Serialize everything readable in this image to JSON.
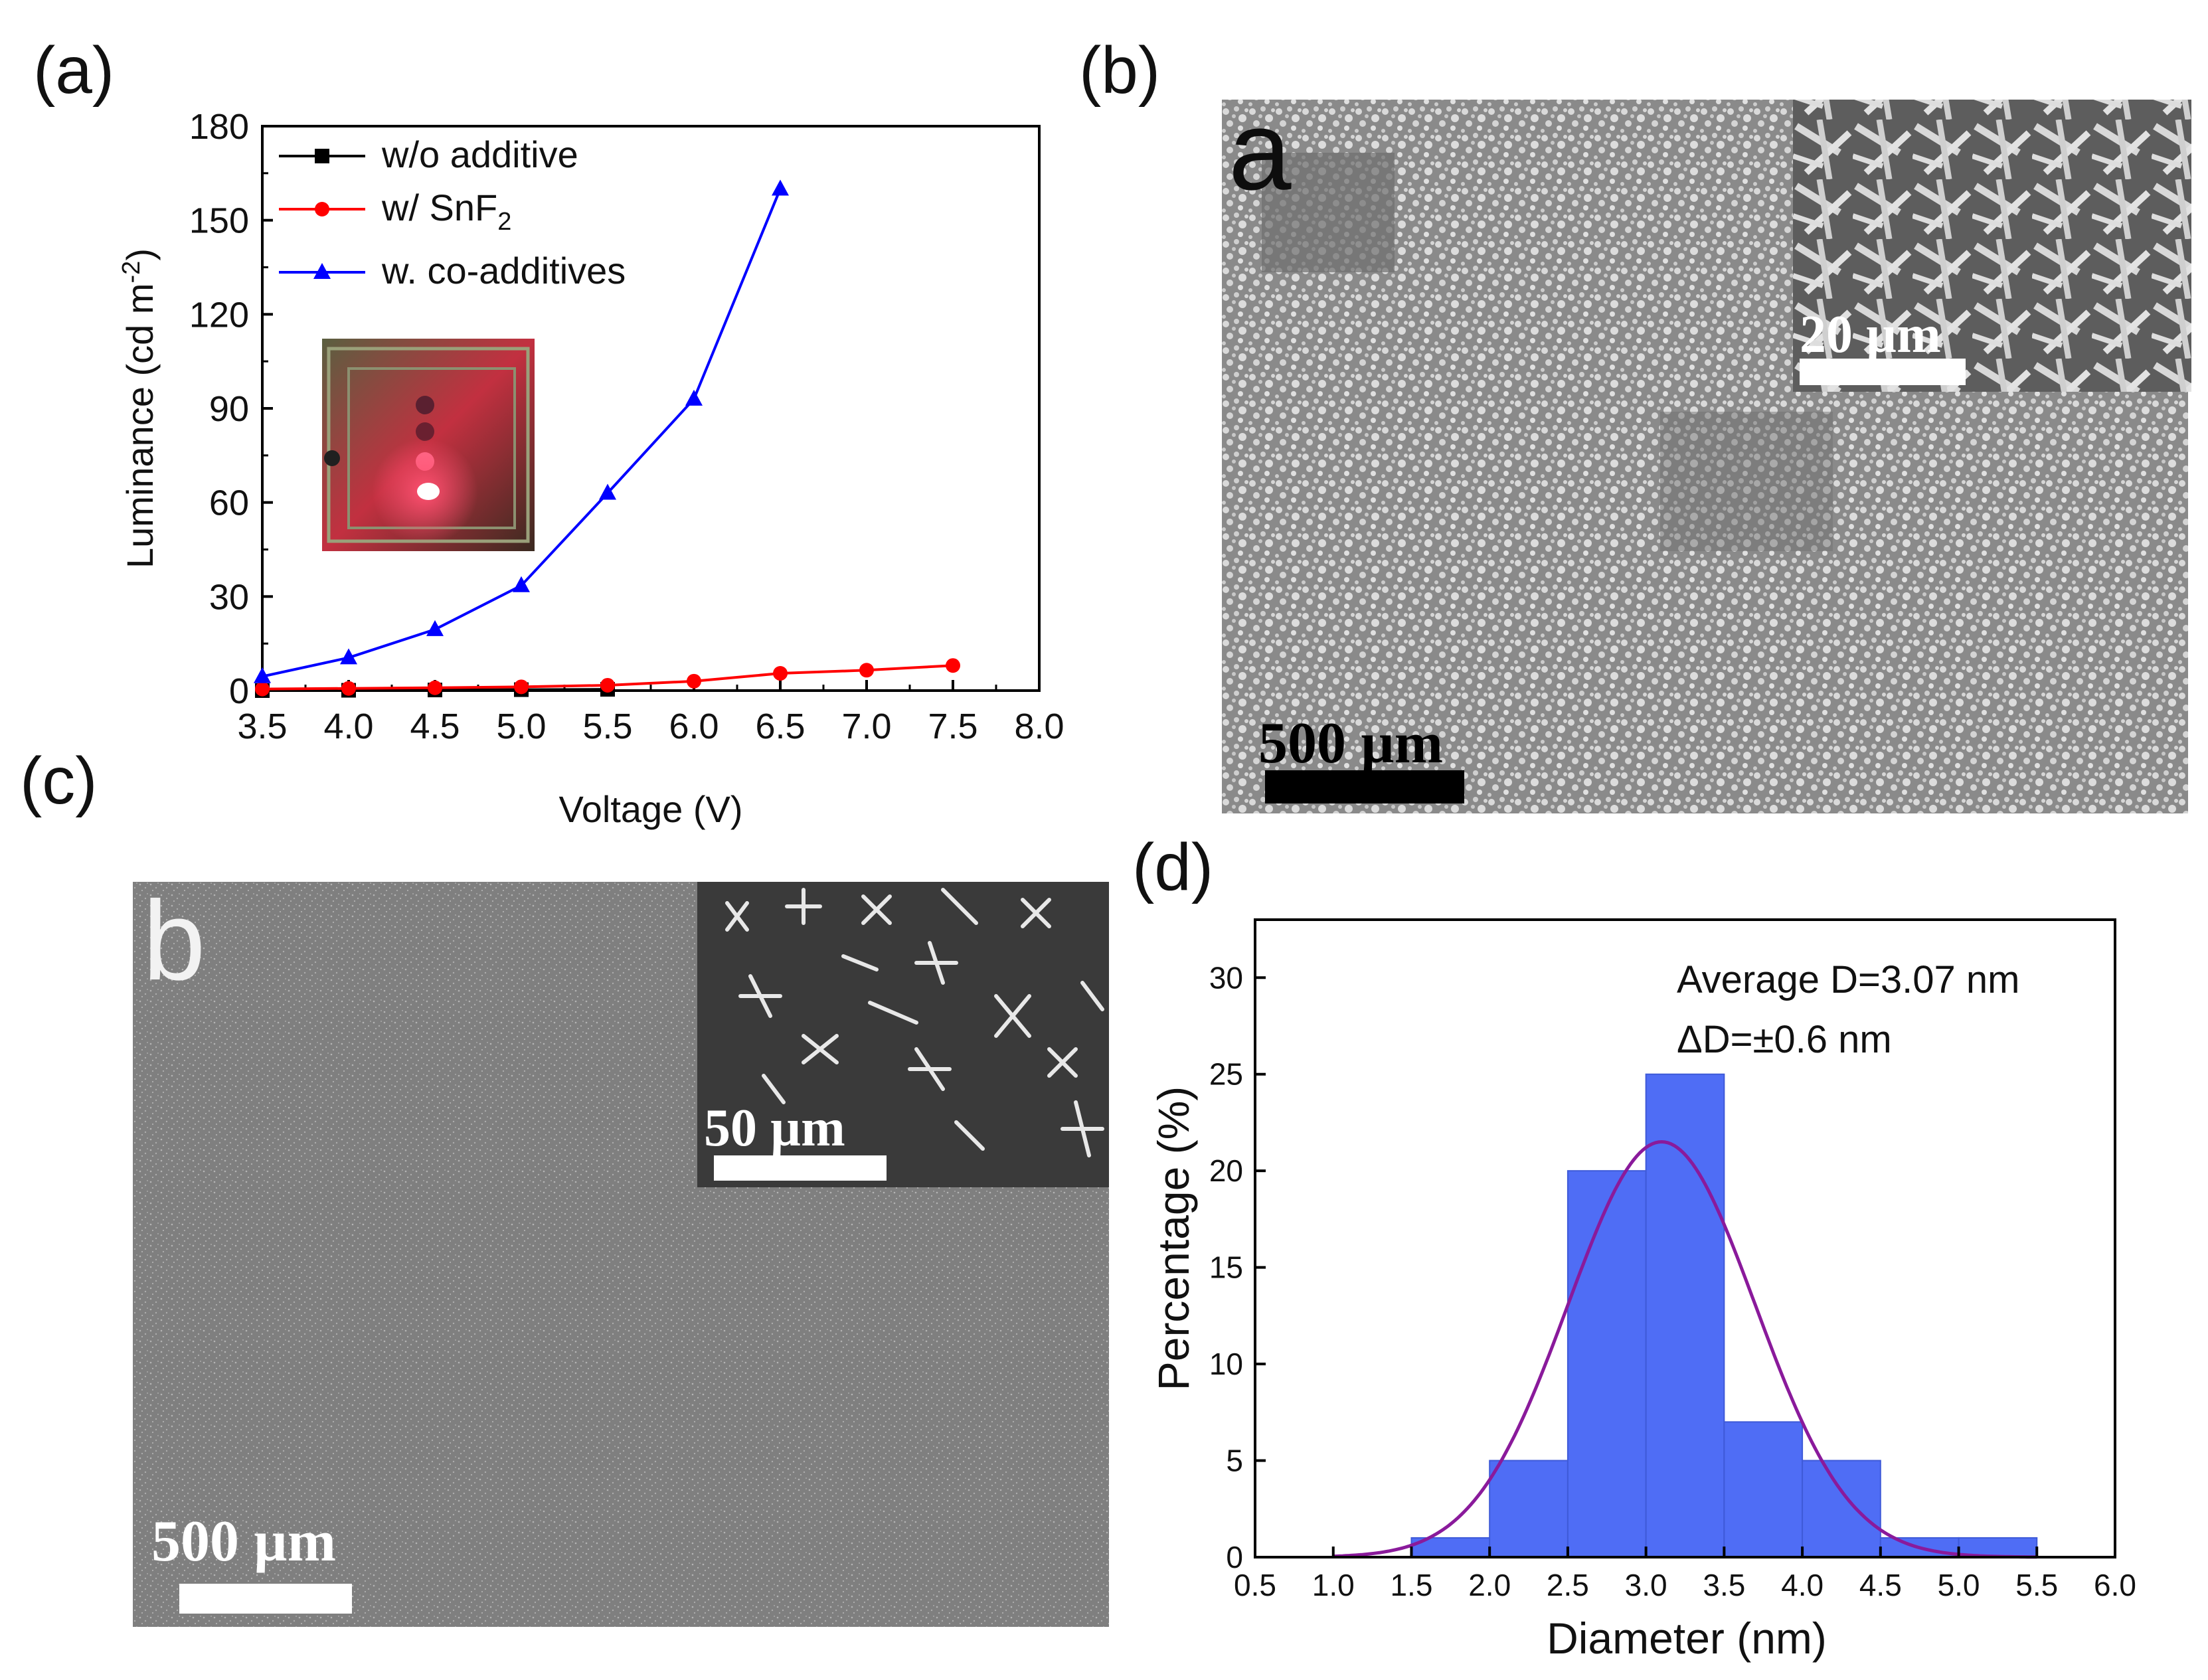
{
  "panel_labels": [
    "(a)",
    "(b)",
    "(c)",
    "(d)"
  ],
  "sem": {
    "b_letter": "a",
    "b_main_scale": "500 µm",
    "b_inset_scale": "20 µm",
    "c_letter": "b",
    "c_main_scale": "500 µm",
    "c_inset_scale": "50 µm"
  },
  "chart_data": [
    {
      "type": "line",
      "panel": "(a)",
      "xlabel": "Voltage (V)",
      "ylabel": "Luminance (cd m",
      "ylabel_sup": "-2",
      "ylabel_end": ")",
      "xlim": [
        3.5,
        8.0
      ],
      "ylim": [
        0,
        180
      ],
      "xticks": [
        "3.5",
        "4.0",
        "4.5",
        "5.0",
        "5.5",
        "6.0",
        "6.5",
        "7.0",
        "7.5",
        "8.0"
      ],
      "yticks": [
        "0",
        "30",
        "60",
        "90",
        "120",
        "150",
        "180"
      ],
      "legend_position": "top-left",
      "inset": "photo of red-emitting device",
      "series": [
        {
          "name": "w/o additive",
          "name_sub": "",
          "color": "#000000",
          "marker": "square",
          "x": [
            3.5,
            4.0,
            4.5,
            5.0,
            5.5
          ],
          "y": [
            0.0,
            0.1,
            0.2,
            0.3,
            0.4
          ]
        },
        {
          "name": "w/ SnF",
          "name_sub": "2",
          "color": "#ff0000",
          "marker": "circle",
          "x": [
            3.5,
            4.0,
            4.5,
            5.0,
            5.5,
            6.0,
            6.5,
            7.0,
            7.5
          ],
          "y": [
            0.5,
            0.7,
            0.9,
            1.2,
            1.7,
            3.0,
            5.5,
            6.5,
            8.0
          ]
        },
        {
          "name": "w. co-additives",
          "name_sub": "",
          "color": "#0000ff",
          "marker": "triangle",
          "x": [
            3.5,
            4.0,
            4.5,
            5.0,
            5.5,
            6.0,
            6.5
          ],
          "y": [
            4.5,
            10.5,
            19.5,
            33.5,
            63.0,
            93.0,
            160.0
          ]
        }
      ]
    },
    {
      "type": "bar",
      "panel": "(d)",
      "xlabel": "Diameter (nm)",
      "ylabel": "Percentage (%)",
      "xlim": [
        0.5,
        6.0
      ],
      "ylim": [
        0,
        33
      ],
      "xticks": [
        "0.5",
        "1.0",
        "1.5",
        "2.0",
        "2.5",
        "3.0",
        "3.5",
        "4.0",
        "4.5",
        "5.0",
        "5.5",
        "6.0"
      ],
      "yticks": [
        "0",
        "5",
        "10",
        "15",
        "20",
        "25",
        "30"
      ],
      "bins": [
        [
          1.5,
          2.0
        ],
        [
          2.0,
          2.5
        ],
        [
          2.5,
          3.0
        ],
        [
          3.0,
          3.5
        ],
        [
          3.5,
          4.0
        ],
        [
          4.0,
          4.5
        ],
        [
          4.5,
          5.0
        ],
        [
          5.0,
          5.5
        ]
      ],
      "values": [
        1,
        5,
        20,
        25,
        7,
        5,
        1,
        1
      ],
      "bar_color": "#4f6df5",
      "fit": {
        "type": "gaussian",
        "center": 3.1,
        "sigma": 0.6,
        "peak": 21.5,
        "color": "#8a1a9b"
      },
      "annotations": [
        "Average D=3.07 nm",
        "ΔD=±0.6 nm"
      ]
    }
  ]
}
